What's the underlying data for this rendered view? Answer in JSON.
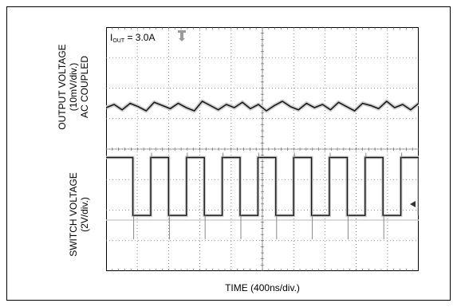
{
  "chart_data": {
    "type": "line",
    "panels": [
      {
        "ylabel_lines": [
          "OUTPUT VOLTAGE",
          "(10mV/div.)",
          "AC COUPLED"
        ],
        "series": [
          {
            "values": [
              0.0,
              0.3,
              -0.2,
              0.4,
              0.1,
              -0.3,
              0.5,
              0.2,
              -0.1,
              0.4,
              0.0,
              -0.3,
              0.6,
              0.2,
              -0.2,
              0.3,
              0.0,
              0.5,
              -0.1,
              0.3,
              -0.3,
              0.2,
              0.6,
              0.1,
              -0.2,
              0.4,
              0.0,
              0.3,
              -0.2,
              0.5,
              0.1,
              -0.3,
              0.4,
              0.2,
              -0.1,
              0.6,
              0.0,
              0.3,
              -0.2,
              0.4
            ]
          }
        ]
      },
      {
        "ylabel_lines": [
          "SWITCH VOLTAGE",
          "(2V/div.)"
        ],
        "series": [
          {
            "values": [
              4.0,
              4.0,
              4.0,
              0.2,
              0.2,
              4.0,
              4.0,
              0.2,
              0.2,
              4.0,
              4.0,
              0.2,
              0.2,
              4.0,
              4.0,
              0.2,
              0.2,
              4.0,
              4.0,
              0.2,
              0.2,
              4.0,
              4.0,
              0.2,
              0.2,
              4.0,
              4.0,
              0.2,
              0.2,
              4.0,
              4.0,
              0.2,
              0.2,
              4.0,
              4.0,
              0.2
            ]
          }
        ]
      }
    ],
    "xlabel": "TIME (400ns/div.)",
    "grid": true,
    "divisions": {
      "x": 10,
      "y": 8
    }
  },
  "annotation": {
    "prefix": "I",
    "sub": "OUT",
    "value": " = 3.0A"
  },
  "icons": {
    "trigger": "trigger-marker-icon",
    "level": "level-marker-icon"
  }
}
